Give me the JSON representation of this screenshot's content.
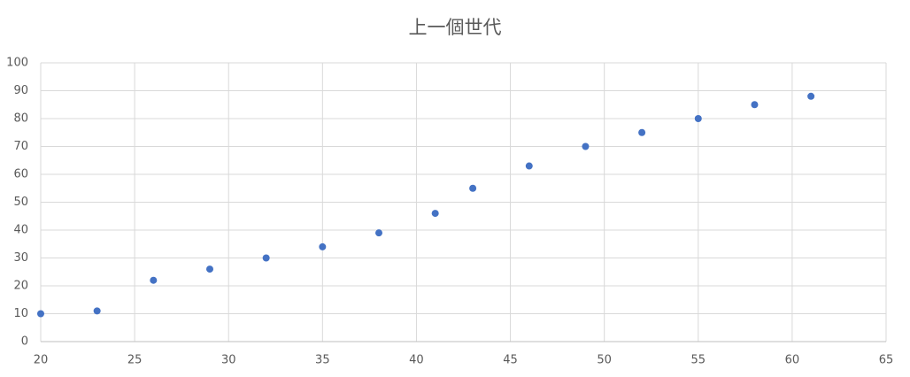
{
  "chart_data": {
    "type": "scatter",
    "title": "上一個世代",
    "series": [
      {
        "color": "#4472c4",
        "x": [
          20,
          23,
          26,
          29,
          32,
          35,
          38,
          41,
          43,
          46,
          49,
          52,
          55,
          58,
          61
        ],
        "values": [
          10,
          11,
          22,
          26,
          30,
          34,
          39,
          46,
          55,
          63,
          70,
          75,
          80,
          85,
          88
        ]
      }
    ],
    "xlim": [
      20,
      65
    ],
    "xticks": [
      20,
      25,
      30,
      35,
      40,
      45,
      50,
      55,
      60,
      65
    ],
    "ylim": [
      0,
      100
    ],
    "yticks": [
      0,
      10,
      20,
      30,
      40,
      50,
      60,
      70,
      80,
      90,
      100
    ],
    "grid": true
  }
}
